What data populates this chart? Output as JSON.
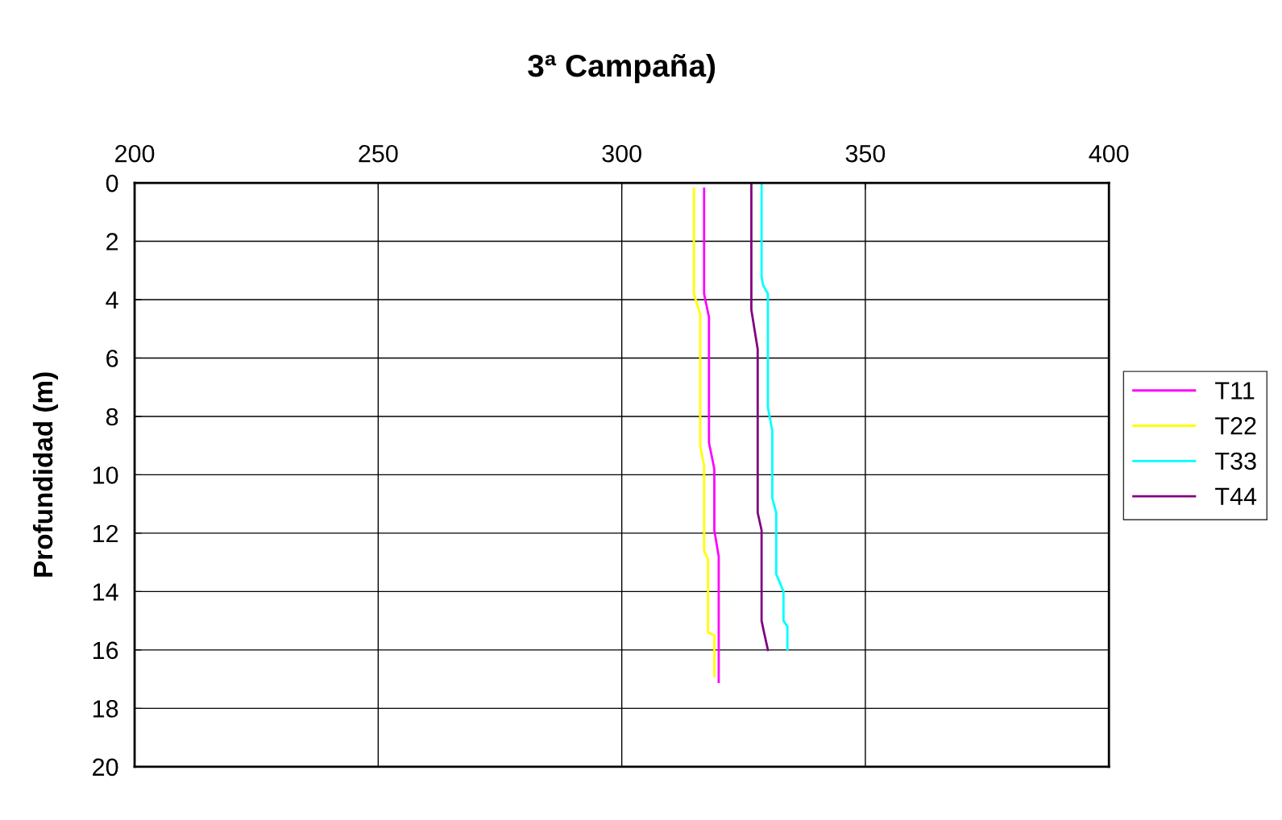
{
  "chart_data": {
    "type": "line",
    "title": "3ª Campaña)",
    "ylabel": "Profundidad (m)",
    "xlim": [
      200,
      400
    ],
    "xticks": [
      200,
      250,
      300,
      350,
      400
    ],
    "ylim": [
      20,
      0
    ],
    "yticks": [
      0,
      2,
      4,
      6,
      8,
      10,
      12,
      14,
      16,
      18,
      20
    ],
    "grid": true,
    "legend": "right",
    "marker": "none",
    "line_style": "solid",
    "series": [
      {
        "name": "T11",
        "color": "#ff00ff",
        "x": [
          316.9,
          316.9,
          317.9,
          317.9,
          319.0,
          319.0,
          319.9,
          319.9
        ],
        "values": [
          0.2,
          3.8,
          4.6,
          8.9,
          9.8,
          11.9,
          12.8,
          17.1
        ]
      },
      {
        "name": "T22",
        "color": "#ffff00",
        "x": [
          314.8,
          314.8,
          316.1,
          316.1,
          316.9,
          316.9,
          317.7,
          317.7,
          319.0,
          319.0
        ],
        "values": [
          0.2,
          3.8,
          4.5,
          9.0,
          9.7,
          12.6,
          12.9,
          15.4,
          15.5,
          16.9
        ]
      },
      {
        "name": "T33",
        "color": "#00ffff",
        "x": [
          328.7,
          328.7,
          329.0,
          330.0,
          330.0,
          330.9,
          330.9,
          331.7,
          331.7,
          333.2,
          333.2,
          334.0,
          334.0
        ],
        "values": [
          0.0,
          3.2,
          3.5,
          3.8,
          7.7,
          8.5,
          10.8,
          11.3,
          13.4,
          14.0,
          15.0,
          15.2,
          16.0
        ]
      },
      {
        "name": "T44",
        "color": "#800080",
        "x": [
          326.6,
          326.6,
          327.9,
          327.9,
          328.7,
          328.7,
          329.2,
          330.0
        ],
        "values": [
          0.0,
          4.35,
          5.7,
          11.3,
          11.9,
          15.0,
          15.4,
          16.0
        ]
      }
    ]
  }
}
